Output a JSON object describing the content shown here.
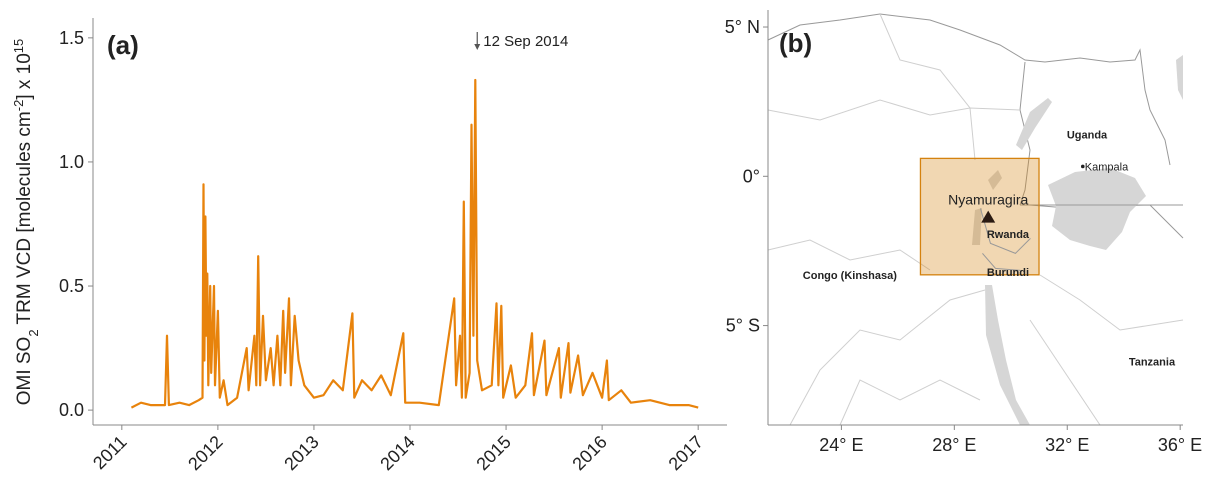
{
  "chart_data": [
    {
      "type": "line",
      "panel_label": "(a)",
      "ylabel_parts": [
        "OMI SO",
        "2",
        " TRM VCD [molecules cm",
        "-2",
        "] x 10",
        "15"
      ],
      "annotation": {
        "text": "12 Sep 2014",
        "x": 2014.7
      },
      "color": "#e8830c",
      "xlim": [
        2010.7,
        2017.3
      ],
      "xticks": [
        2011,
        2012,
        2013,
        2014,
        2015,
        2016,
        2017
      ],
      "ylim": [
        -0.06,
        1.58
      ],
      "yticks": [
        {
          "value": 0,
          "label": "0.0"
        },
        {
          "value": 0.5,
          "label": "0.5"
        },
        {
          "value": 1,
          "label": "1.0"
        },
        {
          "value": 1.5,
          "label": "1.5"
        }
      ],
      "x": [
        2011.1,
        2011.2,
        2011.3,
        2011.45,
        2011.47,
        2011.49,
        2011.6,
        2011.7,
        2011.8,
        2011.84,
        2011.85,
        2011.86,
        2011.87,
        2011.88,
        2011.89,
        2011.9,
        2011.92,
        2011.93,
        2011.96,
        2011.97,
        2012.0,
        2012.02,
        2012.06,
        2012.1,
        2012.2,
        2012.3,
        2012.32,
        2012.38,
        2012.4,
        2012.42,
        2012.44,
        2012.47,
        2012.5,
        2012.55,
        2012.58,
        2012.62,
        2012.65,
        2012.68,
        2012.7,
        2012.74,
        2012.76,
        2012.8,
        2012.84,
        2012.9,
        2013.0,
        2013.1,
        2013.2,
        2013.3,
        2013.4,
        2013.42,
        2013.5,
        2013.6,
        2013.7,
        2013.8,
        2013.93,
        2013.95,
        2014.1,
        2014.3,
        2014.46,
        2014.48,
        2014.52,
        2014.54,
        2014.56,
        2014.58,
        2014.62,
        2014.64,
        2014.66,
        2014.68,
        2014.7,
        2014.75,
        2014.85,
        2014.9,
        2014.92,
        2014.95,
        2014.97,
        2015.05,
        2015.1,
        2015.2,
        2015.27,
        2015.29,
        2015.4,
        2015.42,
        2015.55,
        2015.57,
        2015.65,
        2015.67,
        2015.75,
        2015.8,
        2015.9,
        2016.0,
        2016.05,
        2016.07,
        2016.2,
        2016.3,
        2016.5,
        2016.7,
        2016.9,
        2017.0
      ],
      "values": [
        0.01,
        0.03,
        0.02,
        0.02,
        0.3,
        0.02,
        0.03,
        0.02,
        0.04,
        0.05,
        0.91,
        0.2,
        0.78,
        0.3,
        0.55,
        0.1,
        0.5,
        0.15,
        0.5,
        0.1,
        0.4,
        0.05,
        0.12,
        0.02,
        0.05,
        0.25,
        0.08,
        0.3,
        0.1,
        0.62,
        0.1,
        0.38,
        0.12,
        0.25,
        0.1,
        0.3,
        0.1,
        0.4,
        0.15,
        0.45,
        0.1,
        0.38,
        0.2,
        0.1,
        0.05,
        0.06,
        0.12,
        0.08,
        0.39,
        0.05,
        0.12,
        0.08,
        0.14,
        0.06,
        0.31,
        0.03,
        0.03,
        0.02,
        0.45,
        0.1,
        0.3,
        0.05,
        0.84,
        0.05,
        0.15,
        1.15,
        0.3,
        1.33,
        0.2,
        0.08,
        0.1,
        0.43,
        0.1,
        0.42,
        0.05,
        0.18,
        0.05,
        0.1,
        0.31,
        0.06,
        0.28,
        0.06,
        0.25,
        0.05,
        0.27,
        0.07,
        0.22,
        0.06,
        0.15,
        0.05,
        0.2,
        0.04,
        0.08,
        0.03,
        0.04,
        0.02,
        0.02,
        0.01
      ]
    },
    {
      "type": "map",
      "panel_label": "(b)",
      "xlim": [
        21.4,
        36.1
      ],
      "ylim": [
        -8.33,
        5.57
      ],
      "xticks": [
        {
          "value": 24,
          "label": "24° E"
        },
        {
          "value": 28,
          "label": "28° E"
        },
        {
          "value": 32,
          "label": "32° E"
        },
        {
          "value": 36,
          "label": "36° E"
        }
      ],
      "yticks": [
        {
          "value": 5,
          "label": "5° N"
        },
        {
          "value": 0,
          "label": "0°"
        },
        {
          "value": -5,
          "label": "5° S"
        }
      ],
      "region": {
        "lon": [
          26.8,
          31.0
        ],
        "lat": [
          -3.3,
          0.6
        ],
        "color": "#d4820f"
      },
      "places": [
        {
          "name": "Uganda",
          "lon": 32.7,
          "lat": 1.4,
          "marker": "none",
          "bold": true
        },
        {
          "name": "Kampala",
          "lon": 32.55,
          "lat": 0.33,
          "marker": "dot",
          "bold": false
        },
        {
          "name": "Nyamuragira",
          "lon": 29.2,
          "lat": -1.35,
          "marker": "triangle",
          "bold": false
        },
        {
          "name": "Rwanda",
          "lon": 29.9,
          "lat": -1.93,
          "marker": "none",
          "bold": true
        },
        {
          "name": "Burundi",
          "lon": 29.9,
          "lat": -3.2,
          "marker": "none",
          "bold": true
        },
        {
          "name": "Congo (Kinshasa)",
          "lon": 24.3,
          "lat": -3.3,
          "marker": "none",
          "bold": true
        },
        {
          "name": "Tanzania",
          "lon": 35.0,
          "lat": -6.2,
          "marker": "none",
          "bold": true
        }
      ]
    }
  ]
}
